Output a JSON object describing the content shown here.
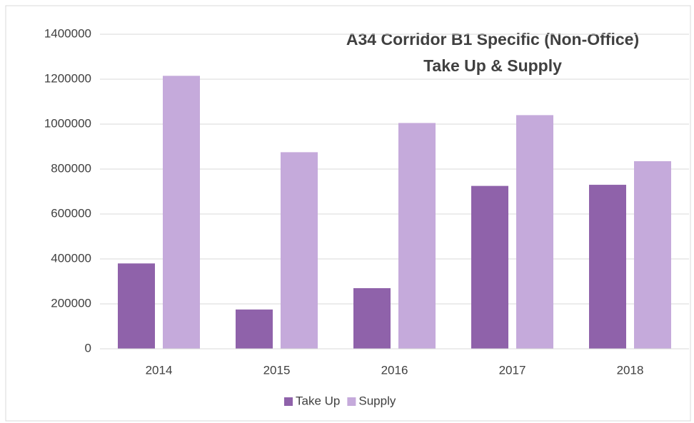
{
  "chart_data": {
    "type": "bar",
    "title": [
      "A34 Corridor B1 Specific (Non-Office)",
      "Take Up & Supply"
    ],
    "categories": [
      "2014",
      "2015",
      "2016",
      "2017",
      "2018"
    ],
    "series": [
      {
        "name": "Take Up",
        "color": "#8f62aa",
        "values": [
          380000,
          175000,
          270000,
          725000,
          730000
        ]
      },
      {
        "name": "Supply",
        "color": "#c5aadb",
        "values": [
          1215000,
          875000,
          1005000,
          1040000,
          835000
        ]
      }
    ],
    "ylim": [
      0,
      1400000
    ],
    "yticks": [
      0,
      200000,
      400000,
      600000,
      800000,
      1000000,
      1200000,
      1400000
    ],
    "grid": true,
    "legend": "bottom"
  }
}
